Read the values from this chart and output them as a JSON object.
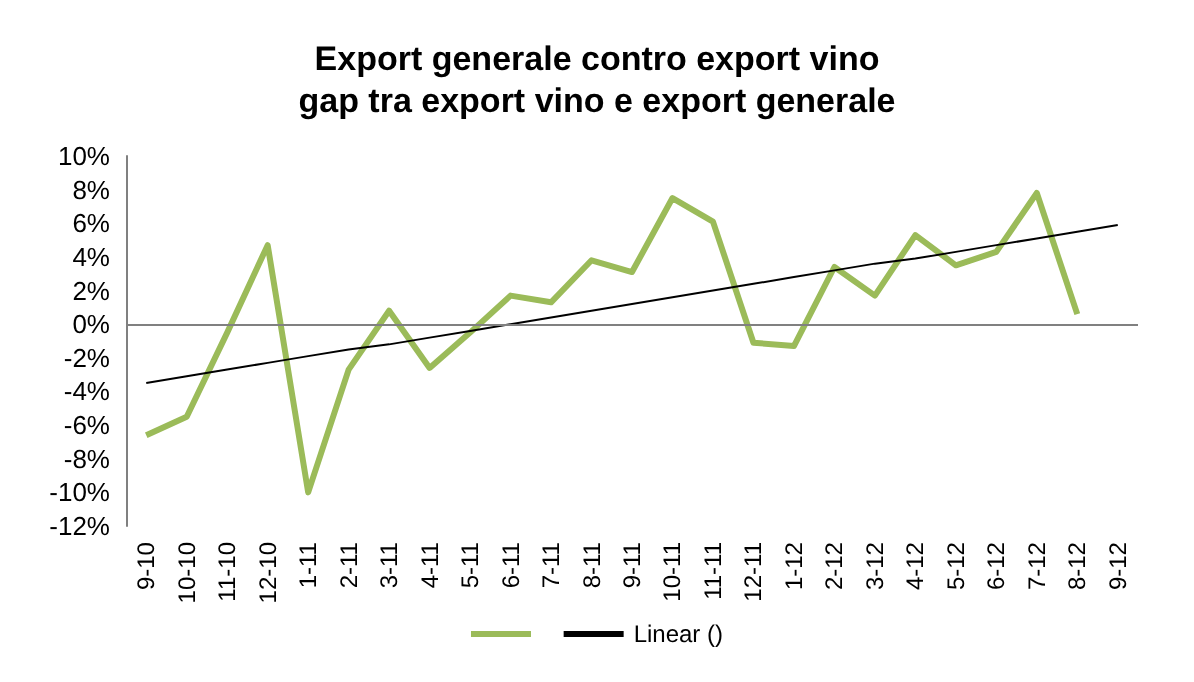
{
  "chart_data": {
    "type": "line",
    "title": "Export generale contro export vino",
    "subtitle": "gap tra export vino e export generale",
    "categories": [
      "9-10",
      "10-10",
      "11-10",
      "12-10",
      "1-11",
      "2-11",
      "3-11",
      "4-11",
      "5-11",
      "6-11",
      "7-11",
      "8-11",
      "9-11",
      "10-11",
      "11-11",
      "12-11",
      "1-12",
      "2-12",
      "3-12",
      "4-12",
      "5-12",
      "6-12",
      "7-12",
      "8-12",
      "9-12"
    ],
    "series": [
      {
        "color": "#9bbb59",
        "values": [
          -6.6,
          -5.5,
          -0.5,
          4.7,
          -10.0,
          -2.7,
          0.8,
          -2.6,
          -0.5,
          1.7,
          1.3,
          3.8,
          3.1,
          7.5,
          6.1,
          -1.1,
          -1.3,
          3.4,
          1.7,
          5.3,
          3.5,
          4.3,
          7.8,
          0.6,
          null
        ]
      },
      {
        "name": "Linear ()",
        "color": "#000000",
        "values": [
          -3.5,
          -3.1,
          -2.7,
          -2.3,
          -1.9,
          -1.5,
          -1.2,
          -0.8,
          -0.4,
          0.0,
          0.4,
          0.8,
          1.2,
          1.6,
          2.0,
          2.4,
          2.8,
          3.2,
          3.6,
          3.9,
          4.3,
          4.7,
          5.1,
          5.5,
          5.9
        ]
      }
    ],
    "ylim": [
      -12,
      10
    ],
    "yticks": [
      {
        "value": -12,
        "label": "-12%"
      },
      {
        "value": -10,
        "label": "-10%"
      },
      {
        "value": -8,
        "label": "-8%"
      },
      {
        "value": -6,
        "label": "-6%"
      },
      {
        "value": -4,
        "label": "-4%"
      },
      {
        "value": -2,
        "label": "-2%"
      },
      {
        "value": 0,
        "label": "0%"
      },
      {
        "value": 2,
        "label": "2%"
      },
      {
        "value": 4,
        "label": "4%"
      },
      {
        "value": 6,
        "label": "6%"
      },
      {
        "value": 8,
        "label": "8%"
      },
      {
        "value": 10,
        "label": "10%"
      }
    ],
    "ref_lines": [
      {
        "axis": "y",
        "value": 0,
        "color": "#808080"
      }
    ],
    "grid": false,
    "legend": "bottom",
    "marker": "none",
    "line_style": "solid"
  }
}
